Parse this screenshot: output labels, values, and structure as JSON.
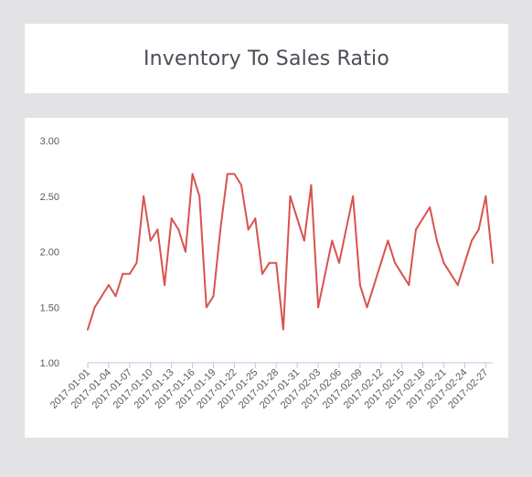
{
  "header": {
    "title": "Inventory To Sales Ratio"
  },
  "chart_data": {
    "type": "line",
    "title": "Inventory To Sales Ratio",
    "xlabel": "",
    "ylabel": "",
    "ylim": [
      1.0,
      3.0
    ],
    "yticks": [
      "1.00",
      "1.50",
      "2.00",
      "2.50",
      "3.00"
    ],
    "grid": false,
    "line_color": "#d9534f",
    "axis_color": "#b8cbe0",
    "x_tick_labels": [
      "2017-01-01",
      "2017-01-04",
      "2017-01-07",
      "2017-01-10",
      "2017-01-13",
      "2017-01-16",
      "2017-01-19",
      "2017-01-22",
      "2017-01-25",
      "2017-01-28",
      "2017-01-31",
      "2017-02-03",
      "2017-02-06",
      "2017-02-09",
      "2017-02-12",
      "2017-02-15",
      "2017-02-18",
      "2017-02-21",
      "2017-02-24",
      "2017-02-27"
    ],
    "x": [
      "2017-01-01",
      "2017-01-02",
      "2017-01-03",
      "2017-01-04",
      "2017-01-05",
      "2017-01-06",
      "2017-01-07",
      "2017-01-08",
      "2017-01-09",
      "2017-01-10",
      "2017-01-11",
      "2017-01-12",
      "2017-01-13",
      "2017-01-14",
      "2017-01-15",
      "2017-01-16",
      "2017-01-17",
      "2017-01-18",
      "2017-01-19",
      "2017-01-20",
      "2017-01-21",
      "2017-01-22",
      "2017-01-23",
      "2017-01-24",
      "2017-01-25",
      "2017-01-26",
      "2017-01-27",
      "2017-01-28",
      "2017-01-29",
      "2017-01-30",
      "2017-01-31",
      "2017-02-01",
      "2017-02-02",
      "2017-02-03",
      "2017-02-04",
      "2017-02-05",
      "2017-02-06",
      "2017-02-07",
      "2017-02-08",
      "2017-02-09",
      "2017-02-10",
      "2017-02-11",
      "2017-02-12",
      "2017-02-13",
      "2017-02-14",
      "2017-02-15",
      "2017-02-16",
      "2017-02-17",
      "2017-02-18",
      "2017-02-19",
      "2017-02-20",
      "2017-02-21",
      "2017-02-22",
      "2017-02-23",
      "2017-02-24",
      "2017-02-25",
      "2017-02-26",
      "2017-02-27",
      "2017-02-28"
    ],
    "series": [
      {
        "values": [
          1.3,
          1.5,
          1.6,
          1.7,
          1.6,
          1.8,
          1.8,
          1.9,
          2.5,
          2.1,
          2.2,
          1.7,
          2.3,
          2.2,
          2.0,
          2.7,
          2.5,
          1.5,
          1.6,
          2.2,
          2.7,
          2.7,
          2.6,
          2.2,
          2.3,
          1.8,
          1.9,
          1.9,
          1.3,
          2.5,
          2.3,
          2.1,
          2.6,
          1.5,
          1.8,
          2.1,
          1.9,
          2.2,
          2.5,
          1.7,
          1.5,
          1.7,
          1.9,
          2.1,
          1.9,
          1.8,
          1.7,
          2.2,
          2.3,
          2.4,
          2.1,
          1.9,
          1.8,
          1.7,
          1.9,
          2.1,
          2.2,
          2.5,
          1.9
        ]
      }
    ]
  }
}
